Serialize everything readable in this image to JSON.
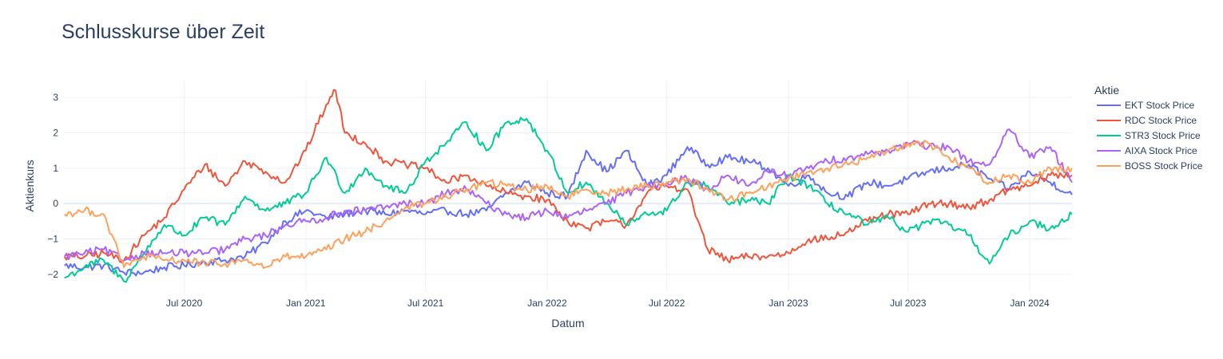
{
  "chart_data": {
    "type": "line",
    "title": "Schlusskurse über Zeit",
    "xlabel": "Datum",
    "ylabel": "Aktienkurs",
    "legend_title": "Aktie",
    "legend_position": "right",
    "grid": true,
    "x_range": [
      "2020-01-01",
      "2024-03-05"
    ],
    "ylim": [
      -2.5,
      3.5
    ],
    "x_ticks": [
      {
        "date": "2020-07-01",
        "label": "Jul 2020"
      },
      {
        "date": "2021-01-01",
        "label": "Jan 2021"
      },
      {
        "date": "2021-07-01",
        "label": "Jul 2021"
      },
      {
        "date": "2022-01-01",
        "label": "Jan 2022"
      },
      {
        "date": "2022-07-01",
        "label": "Jul 2022"
      },
      {
        "date": "2023-01-01",
        "label": "Jan 2023"
      },
      {
        "date": "2023-07-01",
        "label": "Jul 2023"
      },
      {
        "date": "2024-01-01",
        "label": "Jan 2024"
      }
    ],
    "y_ticks": [
      {
        "value": -2,
        "label": "−2"
      },
      {
        "value": -1,
        "label": "−1"
      },
      {
        "value": 0,
        "label": "0"
      },
      {
        "value": 1,
        "label": "1"
      },
      {
        "value": 2,
        "label": "2"
      },
      {
        "value": 3,
        "label": "3"
      }
    ],
    "series": [
      {
        "name": "EKT Stock Price",
        "color": "#636efa",
        "points": [
          [
            "2020-01-02",
            -1.75
          ],
          [
            "2020-02-01",
            -1.8
          ],
          [
            "2020-03-01",
            -1.75
          ],
          [
            "2020-04-01",
            -1.95
          ],
          [
            "2020-05-01",
            -1.95
          ],
          [
            "2020-06-01",
            -1.8
          ],
          [
            "2020-07-01",
            -1.75
          ],
          [
            "2020-08-01",
            -1.65
          ],
          [
            "2020-09-01",
            -1.6
          ],
          [
            "2020-10-01",
            -1.5
          ],
          [
            "2020-11-01",
            -1.1
          ],
          [
            "2020-12-01",
            -0.5
          ],
          [
            "2021-01-01",
            -0.2
          ],
          [
            "2021-02-01",
            -0.4
          ],
          [
            "2021-03-01",
            -0.3
          ],
          [
            "2021-04-01",
            -0.2
          ],
          [
            "2021-05-01",
            -0.3
          ],
          [
            "2021-06-01",
            -0.2
          ],
          [
            "2021-07-01",
            -0.3
          ],
          [
            "2021-08-01",
            -0.2
          ],
          [
            "2021-09-01",
            -0.3
          ],
          [
            "2021-10-01",
            -0.2
          ],
          [
            "2021-11-01",
            0.3
          ],
          [
            "2021-12-01",
            0.6
          ],
          [
            "2022-01-01",
            0.3
          ],
          [
            "2022-02-01",
            0.2
          ],
          [
            "2022-03-01",
            1.5
          ],
          [
            "2022-04-01",
            0.9
          ],
          [
            "2022-05-01",
            1.5
          ],
          [
            "2022-06-01",
            0.5
          ],
          [
            "2022-07-01",
            0.8
          ],
          [
            "2022-08-01",
            1.6
          ],
          [
            "2022-09-01",
            1.1
          ],
          [
            "2022-10-01",
            1.3
          ],
          [
            "2022-11-01",
            1.2
          ],
          [
            "2022-12-01",
            1.0
          ],
          [
            "2023-01-01",
            0.5
          ],
          [
            "2023-02-01",
            0.8
          ],
          [
            "2023-03-01",
            0.3
          ],
          [
            "2023-04-01",
            0.2
          ],
          [
            "2023-05-01",
            0.6
          ],
          [
            "2023-06-01",
            0.5
          ],
          [
            "2023-07-01",
            0.7
          ],
          [
            "2023-08-01",
            0.9
          ],
          [
            "2023-09-01",
            1.0
          ],
          [
            "2023-10-01",
            1.1
          ],
          [
            "2023-11-01",
            0.7
          ],
          [
            "2023-12-01",
            0.4
          ],
          [
            "2024-01-01",
            0.9
          ],
          [
            "2024-02-01",
            0.6
          ],
          [
            "2024-03-05",
            0.25
          ]
        ]
      },
      {
        "name": "RDC Stock Price",
        "color": "#ef553b",
        "points": [
          [
            "2020-01-02",
            -1.5
          ],
          [
            "2020-02-01",
            -1.5
          ],
          [
            "2020-03-01",
            -1.4
          ],
          [
            "2020-04-01",
            -1.6
          ],
          [
            "2020-05-01",
            -0.9
          ],
          [
            "2020-06-01",
            -0.4
          ],
          [
            "2020-07-01",
            0.4
          ],
          [
            "2020-08-01",
            1.1
          ],
          [
            "2020-09-01",
            0.5
          ],
          [
            "2020-10-01",
            1.2
          ],
          [
            "2020-11-01",
            0.9
          ],
          [
            "2020-12-01",
            0.6
          ],
          [
            "2021-01-01",
            1.5
          ],
          [
            "2021-02-01",
            2.8
          ],
          [
            "2021-02-15",
            3.2
          ],
          [
            "2021-03-01",
            2.0
          ],
          [
            "2021-04-01",
            1.7
          ],
          [
            "2021-05-01",
            1.2
          ],
          [
            "2021-06-01",
            1.1
          ],
          [
            "2021-07-01",
            1.0
          ],
          [
            "2021-08-01",
            0.6
          ],
          [
            "2021-09-01",
            0.8
          ],
          [
            "2021-10-01",
            0.5
          ],
          [
            "2021-11-01",
            0.3
          ],
          [
            "2021-12-01",
            0.2
          ],
          [
            "2022-01-01",
            0.1
          ],
          [
            "2022-02-01",
            -0.5
          ],
          [
            "2022-03-01",
            -0.7
          ],
          [
            "2022-04-01",
            -0.5
          ],
          [
            "2022-05-01",
            -0.6
          ],
          [
            "2022-06-01",
            0.3
          ],
          [
            "2022-07-01",
            0.5
          ],
          [
            "2022-08-01",
            0.4
          ],
          [
            "2022-09-01",
            -1.3
          ],
          [
            "2022-10-01",
            -1.6
          ],
          [
            "2022-11-01",
            -1.5
          ],
          [
            "2022-12-01",
            -1.5
          ],
          [
            "2023-01-01",
            -1.4
          ],
          [
            "2023-02-01",
            -1.0
          ],
          [
            "2023-03-01",
            -1.0
          ],
          [
            "2023-04-01",
            -0.8
          ],
          [
            "2023-05-01",
            -0.5
          ],
          [
            "2023-06-01",
            -0.3
          ],
          [
            "2023-07-01",
            -0.3
          ],
          [
            "2023-08-01",
            0.0
          ],
          [
            "2023-09-01",
            0.0
          ],
          [
            "2023-10-01",
            -0.1
          ],
          [
            "2023-11-01",
            0.1
          ],
          [
            "2023-12-01",
            0.4
          ],
          [
            "2024-01-01",
            0.5
          ],
          [
            "2024-02-01",
            0.8
          ],
          [
            "2024-03-05",
            0.8
          ]
        ]
      },
      {
        "name": "STR3 Stock Price",
        "color": "#00cc96",
        "points": [
          [
            "2020-01-02",
            -2.1
          ],
          [
            "2020-02-01",
            -1.8
          ],
          [
            "2020-03-01",
            -1.6
          ],
          [
            "2020-04-01",
            -2.2
          ],
          [
            "2020-05-01",
            -1.4
          ],
          [
            "2020-06-01",
            -0.6
          ],
          [
            "2020-07-01",
            -0.9
          ],
          [
            "2020-08-01",
            -0.4
          ],
          [
            "2020-09-01",
            -0.6
          ],
          [
            "2020-10-01",
            0.2
          ],
          [
            "2020-11-01",
            -0.2
          ],
          [
            "2020-12-01",
            0.0
          ],
          [
            "2021-01-01",
            0.3
          ],
          [
            "2021-02-01",
            1.3
          ],
          [
            "2021-03-01",
            0.3
          ],
          [
            "2021-04-01",
            1.0
          ],
          [
            "2021-05-01",
            0.5
          ],
          [
            "2021-06-01",
            0.3
          ],
          [
            "2021-07-01",
            1.2
          ],
          [
            "2021-08-01",
            1.7
          ],
          [
            "2021-09-01",
            2.3
          ],
          [
            "2021-10-01",
            1.5
          ],
          [
            "2021-11-01",
            2.3
          ],
          [
            "2021-12-01",
            2.4
          ],
          [
            "2022-01-01",
            1.5
          ],
          [
            "2022-02-01",
            0.3
          ],
          [
            "2022-03-01",
            0.6
          ],
          [
            "2022-04-01",
            0.0
          ],
          [
            "2022-05-01",
            -0.6
          ],
          [
            "2022-06-01",
            -0.3
          ],
          [
            "2022-07-01",
            -0.2
          ],
          [
            "2022-08-01",
            0.6
          ],
          [
            "2022-09-01",
            0.5
          ],
          [
            "2022-10-01",
            0.0
          ],
          [
            "2022-11-01",
            0.1
          ],
          [
            "2022-12-01",
            0.0
          ],
          [
            "2023-01-01",
            0.8
          ],
          [
            "2023-02-01",
            0.5
          ],
          [
            "2023-03-01",
            0.0
          ],
          [
            "2023-04-01",
            -0.3
          ],
          [
            "2023-05-01",
            -0.6
          ],
          [
            "2023-06-01",
            -0.4
          ],
          [
            "2023-07-01",
            -0.8
          ],
          [
            "2023-08-01",
            -0.5
          ],
          [
            "2023-09-01",
            -0.6
          ],
          [
            "2023-10-01",
            -0.9
          ],
          [
            "2023-11-01",
            -1.7
          ],
          [
            "2023-12-01",
            -0.9
          ],
          [
            "2024-01-01",
            -0.5
          ],
          [
            "2024-02-01",
            -0.7
          ],
          [
            "2024-03-05",
            -0.3
          ]
        ]
      },
      {
        "name": "AIXA Stock Price",
        "color": "#ab63fa",
        "points": [
          [
            "2020-01-02",
            -1.5
          ],
          [
            "2020-02-01",
            -1.4
          ],
          [
            "2020-03-01",
            -1.3
          ],
          [
            "2020-04-01",
            -1.6
          ],
          [
            "2020-05-01",
            -1.4
          ],
          [
            "2020-06-01",
            -1.4
          ],
          [
            "2020-07-01",
            -1.4
          ],
          [
            "2020-08-01",
            -1.4
          ],
          [
            "2020-09-01",
            -1.3
          ],
          [
            "2020-10-01",
            -1.0
          ],
          [
            "2020-11-01",
            -0.9
          ],
          [
            "2020-12-01",
            -0.6
          ],
          [
            "2021-01-01",
            -0.5
          ],
          [
            "2021-02-01",
            -0.4
          ],
          [
            "2021-03-01",
            -0.2
          ],
          [
            "2021-04-01",
            -0.2
          ],
          [
            "2021-05-01",
            -0.1
          ],
          [
            "2021-06-01",
            0.0
          ],
          [
            "2021-07-01",
            0.0
          ],
          [
            "2021-08-01",
            0.3
          ],
          [
            "2021-09-01",
            0.4
          ],
          [
            "2021-10-01",
            0.0
          ],
          [
            "2021-11-01",
            -0.3
          ],
          [
            "2021-12-01",
            -0.4
          ],
          [
            "2022-01-01",
            -0.2
          ],
          [
            "2022-02-01",
            -0.4
          ],
          [
            "2022-03-01",
            -0.2
          ],
          [
            "2022-04-01",
            0.0
          ],
          [
            "2022-05-01",
            0.3
          ],
          [
            "2022-06-01",
            0.5
          ],
          [
            "2022-07-01",
            0.6
          ],
          [
            "2022-08-01",
            0.7
          ],
          [
            "2022-09-01",
            0.4
          ],
          [
            "2022-10-01",
            0.8
          ],
          [
            "2022-11-01",
            0.5
          ],
          [
            "2022-12-01",
            0.9
          ],
          [
            "2023-01-01",
            0.8
          ],
          [
            "2023-02-01",
            1.0
          ],
          [
            "2023-03-01",
            1.2
          ],
          [
            "2023-04-01",
            1.3
          ],
          [
            "2023-05-01",
            1.4
          ],
          [
            "2023-06-01",
            1.5
          ],
          [
            "2023-07-01",
            1.7
          ],
          [
            "2023-08-01",
            1.6
          ],
          [
            "2023-09-01",
            1.6
          ],
          [
            "2023-10-01",
            1.2
          ],
          [
            "2023-11-01",
            1.1
          ],
          [
            "2023-12-01",
            2.1
          ],
          [
            "2024-01-01",
            1.3
          ],
          [
            "2024-02-01",
            1.6
          ],
          [
            "2024-03-05",
            0.6
          ]
        ]
      },
      {
        "name": "BOSS Stock Price",
        "color": "#ffa15a",
        "points": [
          [
            "2020-01-02",
            -0.3
          ],
          [
            "2020-02-01",
            -0.2
          ],
          [
            "2020-03-01",
            -0.3
          ],
          [
            "2020-04-01",
            -1.8
          ],
          [
            "2020-05-01",
            -1.5
          ],
          [
            "2020-06-01",
            -1.6
          ],
          [
            "2020-07-01",
            -1.6
          ],
          [
            "2020-08-01",
            -1.7
          ],
          [
            "2020-09-01",
            -1.7
          ],
          [
            "2020-10-01",
            -1.6
          ],
          [
            "2020-11-01",
            -1.8
          ],
          [
            "2020-12-01",
            -1.5
          ],
          [
            "2021-01-01",
            -1.5
          ],
          [
            "2021-02-01",
            -1.3
          ],
          [
            "2021-03-01",
            -1.0
          ],
          [
            "2021-04-01",
            -0.8
          ],
          [
            "2021-05-01",
            -0.5
          ],
          [
            "2021-06-01",
            -0.1
          ],
          [
            "2021-07-01",
            0.0
          ],
          [
            "2021-08-01",
            0.2
          ],
          [
            "2021-09-01",
            0.4
          ],
          [
            "2021-10-01",
            0.6
          ],
          [
            "2021-11-01",
            0.5
          ],
          [
            "2021-12-01",
            0.4
          ],
          [
            "2022-01-01",
            0.5
          ],
          [
            "2022-02-01",
            0.2
          ],
          [
            "2022-03-01",
            0.4
          ],
          [
            "2022-04-01",
            0.3
          ],
          [
            "2022-05-01",
            0.4
          ],
          [
            "2022-06-01",
            0.5
          ],
          [
            "2022-07-01",
            0.6
          ],
          [
            "2022-08-01",
            0.7
          ],
          [
            "2022-09-01",
            0.4
          ],
          [
            "2022-10-01",
            0.1
          ],
          [
            "2022-11-01",
            0.3
          ],
          [
            "2022-12-01",
            0.5
          ],
          [
            "2023-01-01",
            0.7
          ],
          [
            "2023-02-01",
            0.9
          ],
          [
            "2023-03-01",
            1.0
          ],
          [
            "2023-04-01",
            1.1
          ],
          [
            "2023-05-01",
            1.3
          ],
          [
            "2023-06-01",
            1.5
          ],
          [
            "2023-07-01",
            1.7
          ],
          [
            "2023-08-01",
            1.7
          ],
          [
            "2023-09-01",
            1.3
          ],
          [
            "2023-10-01",
            1.0
          ],
          [
            "2023-11-01",
            0.6
          ],
          [
            "2023-12-01",
            0.8
          ],
          [
            "2024-01-01",
            0.6
          ],
          [
            "2024-02-01",
            1.0
          ],
          [
            "2024-03-05",
            1.0
          ]
        ]
      }
    ]
  }
}
